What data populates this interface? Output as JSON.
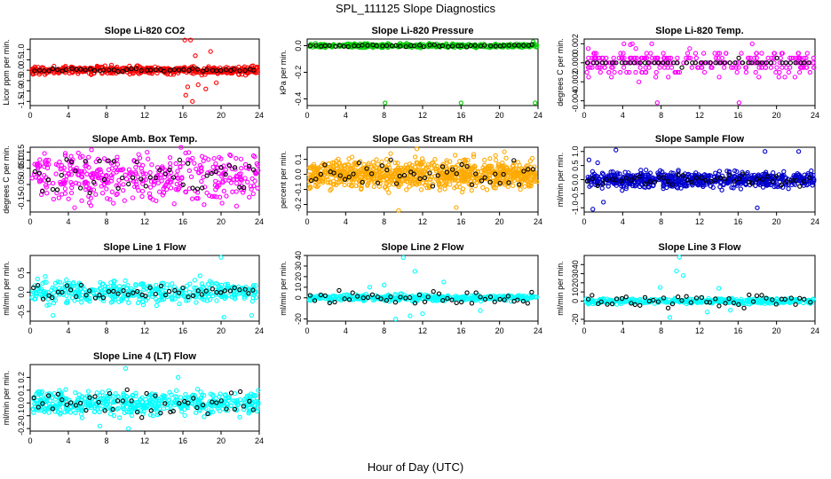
{
  "figure": {
    "title": "SPL_111125  Slope Diagnostics",
    "xlabel": "Hour of Day (UTC)"
  },
  "chart_data": [
    {
      "type": "scatter",
      "title": "Slope Li-820 CO2",
      "xlabel": "",
      "ylabel": "Licor ppm per min.",
      "xlim": [
        0,
        24
      ],
      "ylim": [
        -1.7,
        1.5
      ],
      "xticks": [
        "0",
        "4",
        "8",
        "12",
        "16",
        "20",
        "24"
      ],
      "yticks": [
        "-1.5",
        "-1.0",
        "-0.5",
        "0.0",
        "0.5",
        "1.0"
      ],
      "ytick_values": [
        -1.5,
        -1.0,
        -0.5,
        0.0,
        0.5,
        1.0
      ],
      "color": "#ff0000",
      "band": 0.2,
      "n_points": 480,
      "spikes": [
        [
          16.2,
          1.45
        ],
        [
          16.8,
          1.45
        ],
        [
          17.0,
          -1.5
        ],
        [
          16.3,
          -1.2
        ],
        [
          18.4,
          -0.9
        ],
        [
          17.6,
          -0.7
        ],
        [
          18.9,
          0.9
        ],
        [
          17.3,
          0.7
        ],
        [
          16.5,
          -0.8
        ],
        [
          19.5,
          -0.6
        ]
      ],
      "black_amp": 0.08
    },
    {
      "type": "scatter",
      "title": "Slope Li-820 Pressure",
      "xlabel": "",
      "ylabel": "kPa per min.",
      "xlim": [
        0,
        24
      ],
      "ylim": [
        -0.45,
        0.05
      ],
      "xticks": [
        "0",
        "4",
        "8",
        "12",
        "16",
        "20",
        "24"
      ],
      "yticks": [
        "-0.4",
        "-0.2",
        "0.0"
      ],
      "ytick_values": [
        -0.4,
        -0.2,
        0.0
      ],
      "color": "#00cc00",
      "band": 0.015,
      "n_points": 400,
      "spikes": [
        [
          8.1,
          -0.43
        ],
        [
          16.0,
          -0.43
        ],
        [
          23.7,
          -0.43
        ],
        [
          23.5,
          0.03
        ]
      ],
      "black_amp": 0.01
    },
    {
      "type": "scatter",
      "title": "Slope Li-820 Temp.",
      "xlabel": "",
      "ylabel": "degrees C per min.",
      "xlim": [
        0,
        24
      ],
      "ylim": [
        -0.0045,
        0.0025
      ],
      "xticks": [
        "0",
        "4",
        "8",
        "12",
        "16",
        "20",
        "24"
      ],
      "yticks": [
        "-0.004",
        "-0.002",
        "0.000",
        "0.002"
      ],
      "ytick_values": [
        -0.004,
        -0.002,
        0.0,
        0.002
      ],
      "color": "#ff00ff",
      "band": 0.0015,
      "n_points": 260,
      "quantize": 0.0005,
      "spikes": [
        [
          5.0,
          0.002
        ],
        [
          7.6,
          -0.0042
        ],
        [
          16.1,
          -0.0042
        ],
        [
          4.8,
          0.0019
        ]
      ],
      "black_amp": 0.0004
    },
    {
      "type": "scatter",
      "title": "Slope Amb. Box Temp.",
      "xlabel": "",
      "ylabel": "degrees C per min.",
      "xlim": [
        0,
        24
      ],
      "ylim": [
        -0.22,
        0.18
      ],
      "xticks": [
        "0",
        "4",
        "8",
        "12",
        "16",
        "20",
        "24"
      ],
      "yticks": [
        "-0.15",
        "-0.05",
        "0.05",
        "0.10",
        "0.15"
      ],
      "ytick_values": [
        -0.15,
        -0.05,
        0.05,
        0.1,
        0.15
      ],
      "color": "#ff00ff",
      "band": 0.16,
      "n_points": 420,
      "spikes": [],
      "black_amp": 0.14
    },
    {
      "type": "scatter",
      "title": "Slope Gas Stream RH",
      "xlabel": "",
      "ylabel": "percent per min.",
      "xlim": [
        0,
        24
      ],
      "ylim": [
        -0.25,
        0.18
      ],
      "xticks": [
        "0",
        "4",
        "8",
        "12",
        "16",
        "20",
        "24"
      ],
      "yticks": [
        "-0.2",
        "-0.1",
        "0.0",
        "0.1"
      ],
      "ytick_values": [
        -0.2,
        -0.1,
        0.0,
        0.1
      ],
      "color": "#ffaa00",
      "band": 0.1,
      "n_points": 900,
      "spikes": [
        [
          11.4,
          0.17
        ],
        [
          9.5,
          -0.24
        ],
        [
          15.5,
          -0.22
        ],
        [
          20.5,
          0.15
        ]
      ],
      "black_amp": 0.1
    },
    {
      "type": "scatter",
      "title": "Slope Sample Flow",
      "xlabel": "",
      "ylabel": "ml/min per min.",
      "xlim": [
        0,
        24
      ],
      "ylim": [
        -1.15,
        1.15
      ],
      "xticks": [
        "0",
        "4",
        "8",
        "12",
        "16",
        "20",
        "24"
      ],
      "yticks": [
        "-1.0",
        "-0.5",
        "0.0",
        "0.5",
        "1.0"
      ],
      "ytick_values": [
        -1.0,
        -0.5,
        0.0,
        0.5,
        1.0
      ],
      "color": "#0000cc",
      "band": 0.3,
      "n_points": 650,
      "spikes": [
        [
          0.9,
          -1.05
        ],
        [
          3.3,
          1.05
        ],
        [
          18.8,
          1.0
        ],
        [
          18.0,
          -1.0
        ],
        [
          22.3,
          1.0
        ],
        [
          0.5,
          0.7
        ],
        [
          1.4,
          0.6
        ],
        [
          2.0,
          -0.8
        ]
      ],
      "black_amp": 0.25
    },
    {
      "type": "scatter",
      "title": "Slope Line 1 Flow",
      "xlabel": "",
      "ylabel": "ml/min per min.",
      "xlim": [
        0,
        24
      ],
      "ylim": [
        -0.75,
        0.95
      ],
      "xticks": [
        "0",
        "4",
        "8",
        "12",
        "16",
        "20",
        "24"
      ],
      "yticks": [
        "-0.5",
        "0.0",
        "0.5"
      ],
      "ytick_values": [
        -0.5,
        0.0,
        0.5
      ],
      "color": "#00ffff",
      "band": 0.3,
      "n_points": 420,
      "spikes": [
        [
          20.0,
          0.9
        ],
        [
          2.4,
          -0.6
        ],
        [
          23.2,
          -0.6
        ],
        [
          20.3,
          -0.65
        ]
      ],
      "black_amp": 0.25
    },
    {
      "type": "scatter",
      "title": "Slope Line 2 Flow",
      "xlabel": "",
      "ylabel": "ml/min per min.",
      "xlim": [
        0,
        24
      ],
      "ylim": [
        -22,
        40
      ],
      "xticks": [
        "0",
        "4",
        "8",
        "12",
        "16",
        "20",
        "24"
      ],
      "yticks": [
        "-20",
        "0",
        "10",
        "20",
        "30",
        "40"
      ],
      "ytick_values": [
        -20,
        0,
        10,
        20,
        30,
        40
      ],
      "color": "#00ffff",
      "band": 3,
      "n_points": 420,
      "spikes": [
        [
          10.0,
          38
        ],
        [
          11.2,
          25
        ],
        [
          9.2,
          -20
        ],
        [
          6.5,
          10
        ],
        [
          8.0,
          12
        ],
        [
          12.0,
          -15
        ],
        [
          10.7,
          -17
        ],
        [
          14.2,
          15
        ],
        [
          18.0,
          -12
        ]
      ],
      "black_amp": 8
    },
    {
      "type": "scatter",
      "title": "Slope Line 3 Flow",
      "xlabel": "",
      "ylabel": "ml/min per min.",
      "xlim": [
        0,
        24
      ],
      "ylim": [
        -22,
        50
      ],
      "xticks": [
        "0",
        "4",
        "8",
        "12",
        "16",
        "20",
        "24"
      ],
      "yticks": [
        "-20",
        "0",
        "10",
        "20",
        "30",
        "40"
      ],
      "ytick_values": [
        -20,
        0,
        10,
        20,
        30,
        40
      ],
      "color": "#00ffff",
      "band": 3,
      "n_points": 420,
      "spikes": [
        [
          9.9,
          48
        ],
        [
          9.6,
          33
        ],
        [
          10.3,
          28
        ],
        [
          7.9,
          15
        ],
        [
          8.9,
          -18
        ],
        [
          14.0,
          14
        ],
        [
          12.8,
          -12
        ],
        [
          15.2,
          -10
        ]
      ],
      "black_amp": 8
    },
    {
      "type": "scatter",
      "title": "Slope Line 4 (LT) Flow",
      "xlabel": "",
      "ylabel": "ml/min per min.",
      "xlim": [
        0,
        24
      ],
      "ylim": [
        -0.22,
        0.3
      ],
      "xticks": [
        "0",
        "4",
        "8",
        "12",
        "16",
        "20",
        "24"
      ],
      "yticks": [
        "-0.2",
        "-0.1",
        "0.0",
        "0.1",
        "0.2"
      ],
      "ytick_values": [
        -0.2,
        -0.1,
        0.0,
        0.1,
        0.2
      ],
      "color": "#00ffff",
      "band": 0.1,
      "n_points": 520,
      "spikes": [
        [
          10.0,
          0.27
        ],
        [
          10.3,
          -0.2
        ],
        [
          7.3,
          -0.18
        ],
        [
          15.5,
          0.2
        ]
      ],
      "black_amp": 0.12
    }
  ]
}
